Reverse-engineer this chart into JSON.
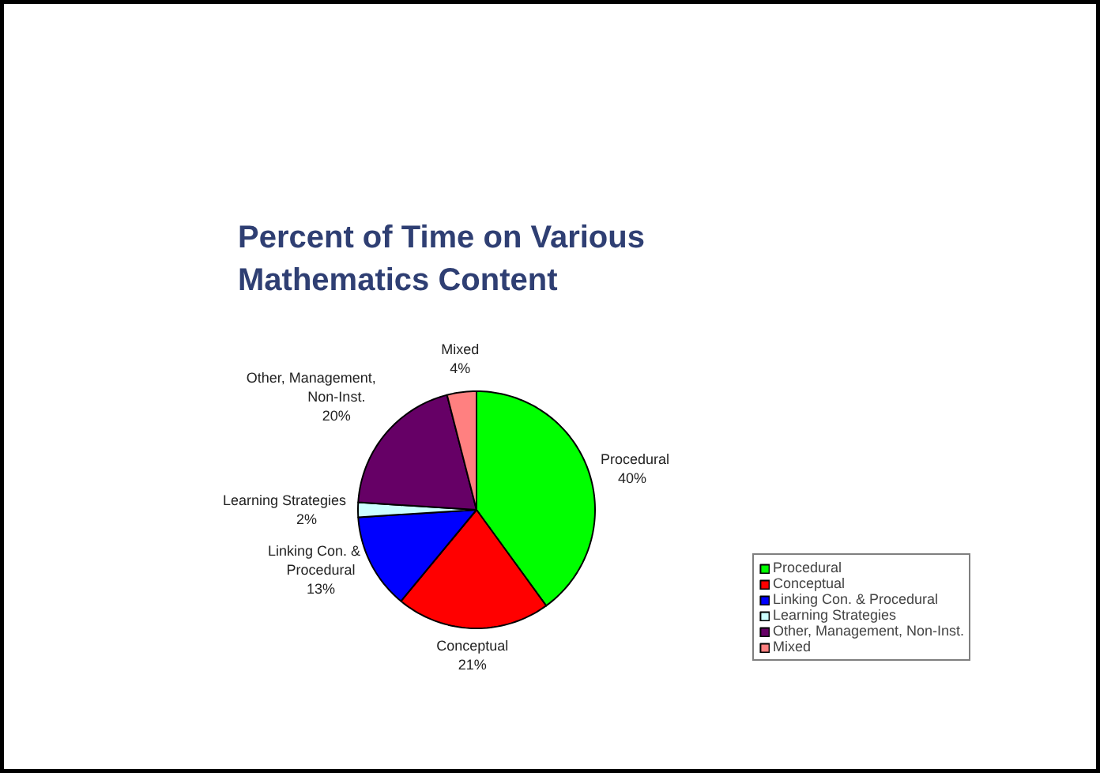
{
  "chart_data": {
    "type": "pie",
    "title": "Percent of Time on Various Mathematics Content",
    "categories": [
      "Procedural",
      "Conceptual",
      "Linking Con. & Procedural",
      "Learning Strategies",
      "Other, Management, Non-Inst.",
      "Mixed"
    ],
    "values": [
      40,
      21,
      13,
      2,
      20,
      4
    ],
    "colors": [
      "#00ff00",
      "#ff0000",
      "#0000ff",
      "#ccffff",
      "#660066",
      "#ff8080"
    ],
    "value_labels": [
      "40%",
      "21%",
      "13%",
      "2%",
      "20%",
      "4%"
    ],
    "legend": "right"
  }
}
